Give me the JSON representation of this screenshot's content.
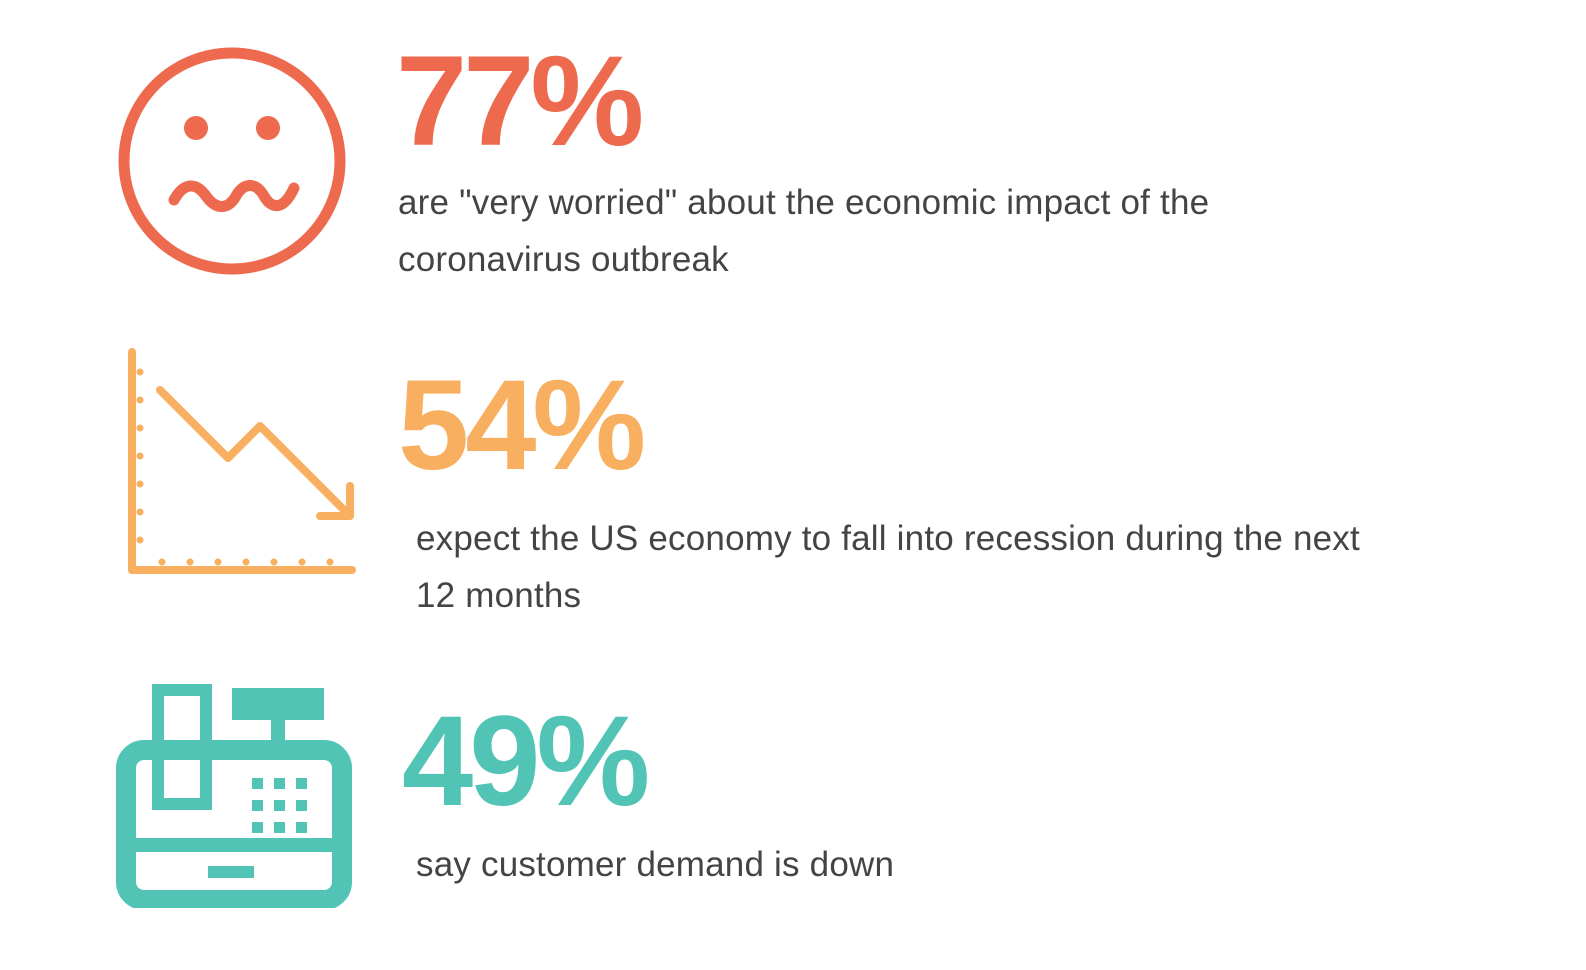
{
  "colors": {
    "stat1": "#EE6A4F",
    "stat2": "#F8AF5F",
    "stat3": "#52C4B5",
    "text": "#444444"
  },
  "stats": [
    {
      "icon": "worried-face-icon",
      "value": "77%",
      "description": "are \"very worried\" about the economic impact of the coronavirus outbreak"
    },
    {
      "icon": "declining-chart-icon",
      "value": "54%",
      "description": "expect the US economy to fall into recession during the next 12 months"
    },
    {
      "icon": "cash-register-icon",
      "value": "49%",
      "description": "say customer demand is down"
    }
  ]
}
